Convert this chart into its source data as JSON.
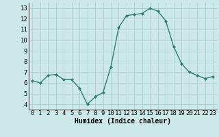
{
  "x": [
    0,
    1,
    2,
    3,
    4,
    5,
    6,
    7,
    8,
    9,
    10,
    11,
    12,
    13,
    14,
    15,
    16,
    17,
    18,
    19,
    20,
    21,
    22,
    23
  ],
  "y": [
    6.2,
    6.0,
    6.7,
    6.8,
    6.3,
    6.3,
    5.5,
    4.0,
    4.7,
    5.1,
    7.5,
    11.2,
    12.3,
    12.4,
    12.5,
    13.0,
    12.7,
    11.8,
    9.4,
    7.8,
    7.0,
    6.7,
    6.4,
    6.6
  ],
  "line_color": "#2e7d6e",
  "marker": "D",
  "marker_size": 2.0,
  "line_width": 1.0,
  "xlabel": "Humidex (Indice chaleur)",
  "xlabel_fontsize": 7,
  "xlabel_fontweight": "bold",
  "bg_color": "#cce8e8",
  "grid_color": "#aacfcf",
  "ylim": [
    3.5,
    13.5
  ],
  "xlim": [
    -0.5,
    23.5
  ],
  "yticks": [
    4,
    5,
    6,
    7,
    8,
    9,
    10,
    11,
    12,
    13
  ],
  "xticks": [
    0,
    1,
    2,
    3,
    4,
    5,
    6,
    7,
    8,
    9,
    10,
    11,
    12,
    13,
    14,
    15,
    16,
    17,
    18,
    19,
    20,
    21,
    22,
    23
  ],
  "tick_fontsize": 6.5,
  "spine_color": "#555555"
}
